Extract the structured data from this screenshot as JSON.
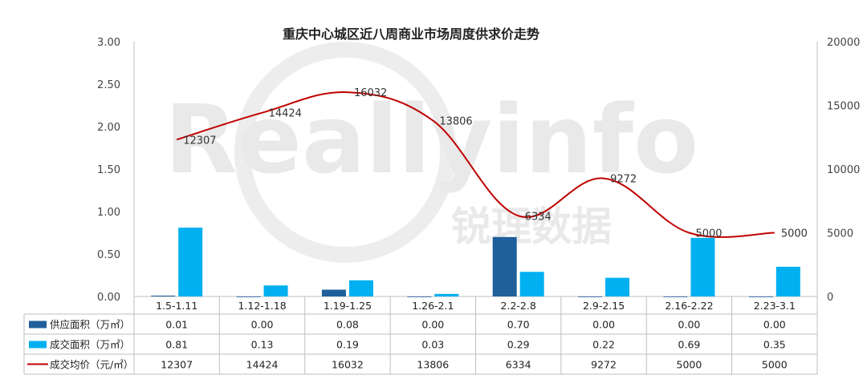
{
  "chart_data": {
    "type": "bar",
    "title": "重庆中心城区近八周商业市场周度供求价走势",
    "watermark": {
      "brand": "Reallyinfo",
      "brand_cn": "锐理数据"
    },
    "categories": [
      "1.5-1.11",
      "1.12-1.18",
      "1.19-1.25",
      "1.26-2.1",
      "2.2-2.8",
      "2.9-2.15",
      "2.16-2.22",
      "2.23-3.1"
    ],
    "y_left": {
      "min": 0,
      "max": 3.0,
      "ticks": [
        "0.00",
        "0.50",
        "1.00",
        "1.50",
        "2.00",
        "2.50",
        "3.00"
      ]
    },
    "y_right": {
      "min": 0,
      "max": 20000,
      "ticks": [
        "0",
        "5000",
        "10000",
        "15000",
        "20000"
      ]
    },
    "series": [
      {
        "name": "供应面积（万㎡）",
        "kind": "bar",
        "axis": "left",
        "color": "#1f5f9a",
        "values": [
          0.01,
          0.0,
          0.08,
          0.0,
          0.7,
          0.0,
          0.0,
          0.0
        ],
        "table": [
          "0.01",
          "0.00",
          "0.08",
          "0.00",
          "0.70",
          "0.00",
          "0.00",
          "0.00"
        ]
      },
      {
        "name": "成交面积（万㎡）",
        "kind": "bar",
        "axis": "left",
        "color": "#00b0f0",
        "values": [
          0.81,
          0.13,
          0.19,
          0.03,
          0.29,
          0.22,
          0.69,
          0.35
        ],
        "table": [
          "0.81",
          "0.13",
          "0.19",
          "0.03",
          "0.29",
          "0.22",
          "0.69",
          "0.35"
        ]
      },
      {
        "name": "成交均价（元/㎡）",
        "kind": "line",
        "axis": "right",
        "color": "#c00000",
        "values": [
          12307,
          14424,
          16032,
          13806,
          6334,
          9272,
          5000,
          5000
        ],
        "table": [
          "12307",
          "14424",
          "16032",
          "13806",
          "6334",
          "9272",
          "5000",
          "5000"
        ],
        "labels": [
          "12307",
          "14424",
          "16032",
          "13806",
          "6334",
          "9272",
          "5000",
          "5000"
        ]
      }
    ],
    "legend_placement": "data-table"
  }
}
